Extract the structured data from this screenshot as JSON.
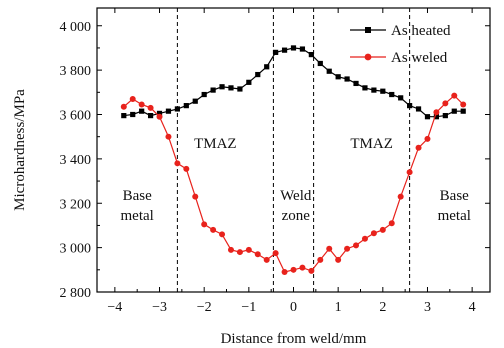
{
  "chart_data": {
    "type": "line",
    "title": "",
    "xlabel": "Distance from weld/mm",
    "ylabel": "Microhardness/MPa",
    "xlim": [
      -4.4,
      4.4
    ],
    "ylim": [
      2800,
      4080
    ],
    "xticks": [
      -4,
      -3,
      -2,
      -1,
      0,
      1,
      2,
      3,
      4
    ],
    "xtick_labels": [
      "−4",
      "−3",
      "−2",
      "−1",
      "0",
      "1",
      "2",
      "3",
      "4"
    ],
    "yticks": [
      2800,
      3000,
      3200,
      3400,
      3600,
      3800,
      4000
    ],
    "ytick_labels": [
      "2 800",
      "3 000",
      "3 200",
      "3 400",
      "3 600",
      "3 800",
      "4 000"
    ],
    "grid": false,
    "legend_position": "top-right",
    "boundaries": [
      -2.6,
      -0.45,
      0.45,
      2.6
    ],
    "annotations": [
      {
        "text": "TMAZ",
        "x": -1.75,
        "y": 3450
      },
      {
        "text": "TMAZ",
        "x": 1.75,
        "y": 3450
      },
      {
        "text": "Base",
        "x": -3.5,
        "y": 3215
      },
      {
        "text": "metal",
        "x": -3.5,
        "y": 3125
      },
      {
        "text": "Weld",
        "x": 0.05,
        "y": 3215
      },
      {
        "text": "zone",
        "x": 0.05,
        "y": 3125
      },
      {
        "text": "Base",
        "x": 3.6,
        "y": 3215
      },
      {
        "text": "metal",
        "x": 3.6,
        "y": 3125
      }
    ],
    "series": [
      {
        "name": "As heated",
        "color": "#000000",
        "marker": "square",
        "x": [
          -3.8,
          -3.6,
          -3.4,
          -3.2,
          -3.0,
          -2.8,
          -2.6,
          -2.4,
          -2.2,
          -2.0,
          -1.8,
          -1.6,
          -1.4,
          -1.2,
          -1.0,
          -0.8,
          -0.6,
          -0.4,
          -0.2,
          0.0,
          0.2,
          0.4,
          0.6,
          0.8,
          1.0,
          1.2,
          1.4,
          1.6,
          1.8,
          2.0,
          2.2,
          2.4,
          2.6,
          2.8,
          3.0,
          3.2,
          3.4,
          3.6,
          3.8
        ],
        "values": [
          3595,
          3600,
          3615,
          3595,
          3605,
          3615,
          3625,
          3640,
          3660,
          3690,
          3710,
          3725,
          3720,
          3715,
          3745,
          3780,
          3815,
          3880,
          3890,
          3900,
          3895,
          3870,
          3830,
          3795,
          3770,
          3760,
          3740,
          3720,
          3710,
          3705,
          3690,
          3675,
          3640,
          3625,
          3590,
          3590,
          3595,
          3615,
          3615
        ]
      },
      {
        "name": "As weled",
        "color": "#e8221c",
        "marker": "circle",
        "x": [
          -3.8,
          -3.6,
          -3.4,
          -3.2,
          -3.0,
          -2.8,
          -2.6,
          -2.4,
          -2.2,
          -2.0,
          -1.8,
          -1.6,
          -1.4,
          -1.2,
          -1.0,
          -0.8,
          -0.6,
          -0.4,
          -0.2,
          0.0,
          0.2,
          0.4,
          0.6,
          0.8,
          1.0,
          1.2,
          1.4,
          1.6,
          1.8,
          2.0,
          2.2,
          2.4,
          2.6,
          2.8,
          3.0,
          3.2,
          3.4,
          3.6,
          3.8
        ],
        "values": [
          3635,
          3670,
          3645,
          3630,
          3590,
          3500,
          3380,
          3355,
          3230,
          3105,
          3080,
          3060,
          2990,
          2980,
          2990,
          2970,
          2945,
          2975,
          2890,
          2900,
          2910,
          2895,
          2945,
          2995,
          2945,
          2995,
          3010,
          3040,
          3065,
          3080,
          3110,
          3230,
          3340,
          3450,
          3490,
          3610,
          3650,
          3685,
          3645
        ]
      }
    ]
  }
}
